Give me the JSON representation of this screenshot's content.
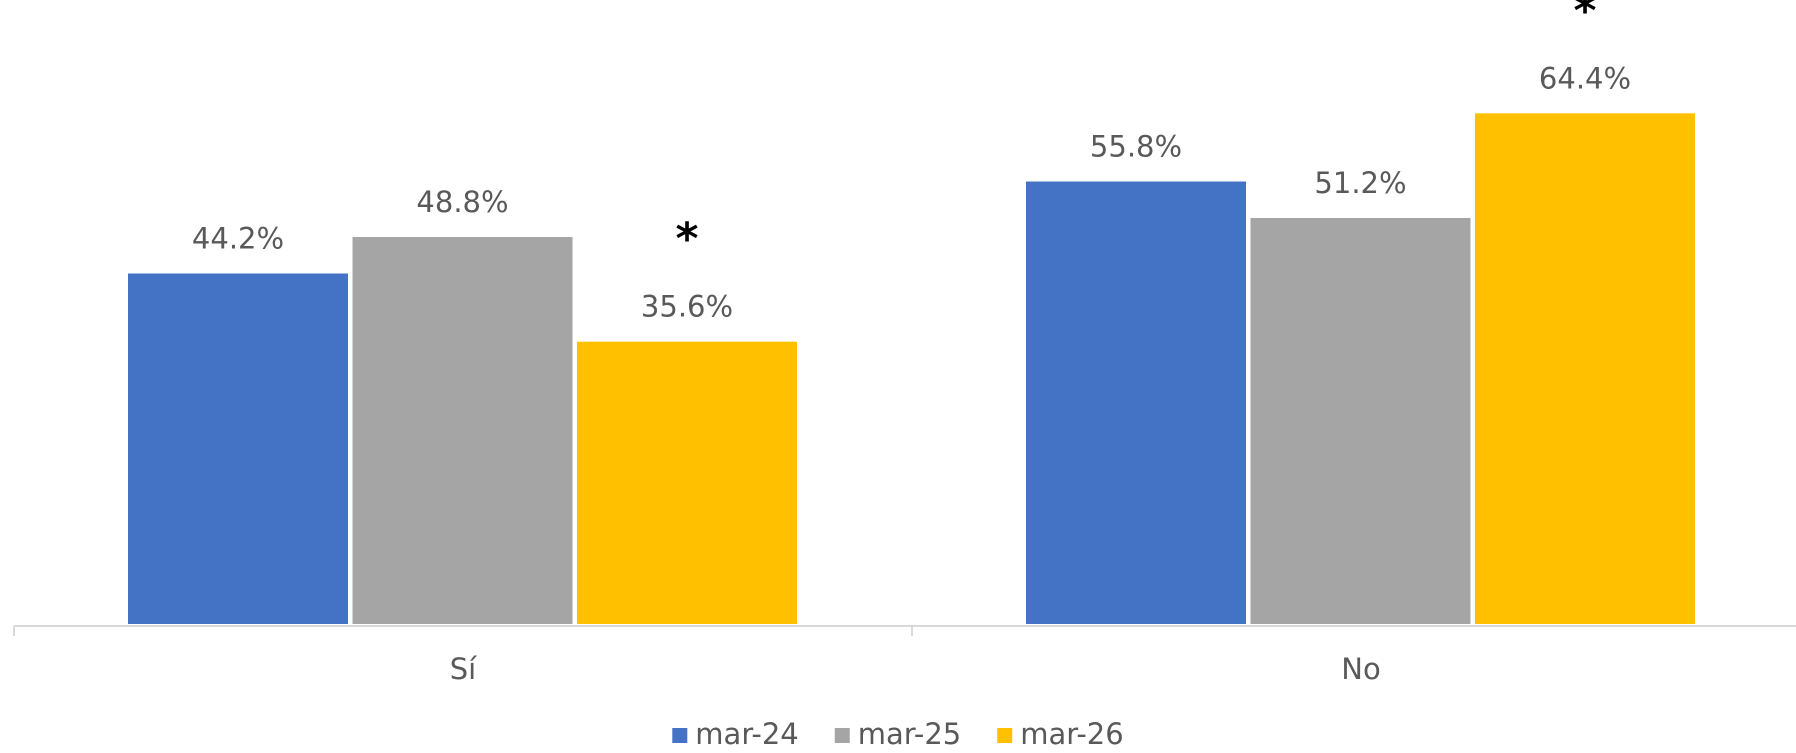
{
  "chart_data": {
    "type": "bar",
    "categories": [
      "Sí",
      "No"
    ],
    "series": [
      {
        "name": "mar-24",
        "color": "#4472c4",
        "values": [
          44.2,
          55.8
        ],
        "value_labels": [
          "44.2%",
          "55.8%"
        ]
      },
      {
        "name": "mar-25",
        "color": "#a5a5a5",
        "values": [
          48.8,
          51.2
        ],
        "value_labels": [
          "48.8%",
          "51.2%"
        ]
      },
      {
        "name": "mar-26",
        "color": "#ffc000",
        "values": [
          35.6,
          64.4
        ],
        "value_labels": [
          "35.6%",
          "64.4%"
        ],
        "value_notes": [
          "*",
          "*"
        ]
      }
    ],
    "legend": "bottom"
  }
}
